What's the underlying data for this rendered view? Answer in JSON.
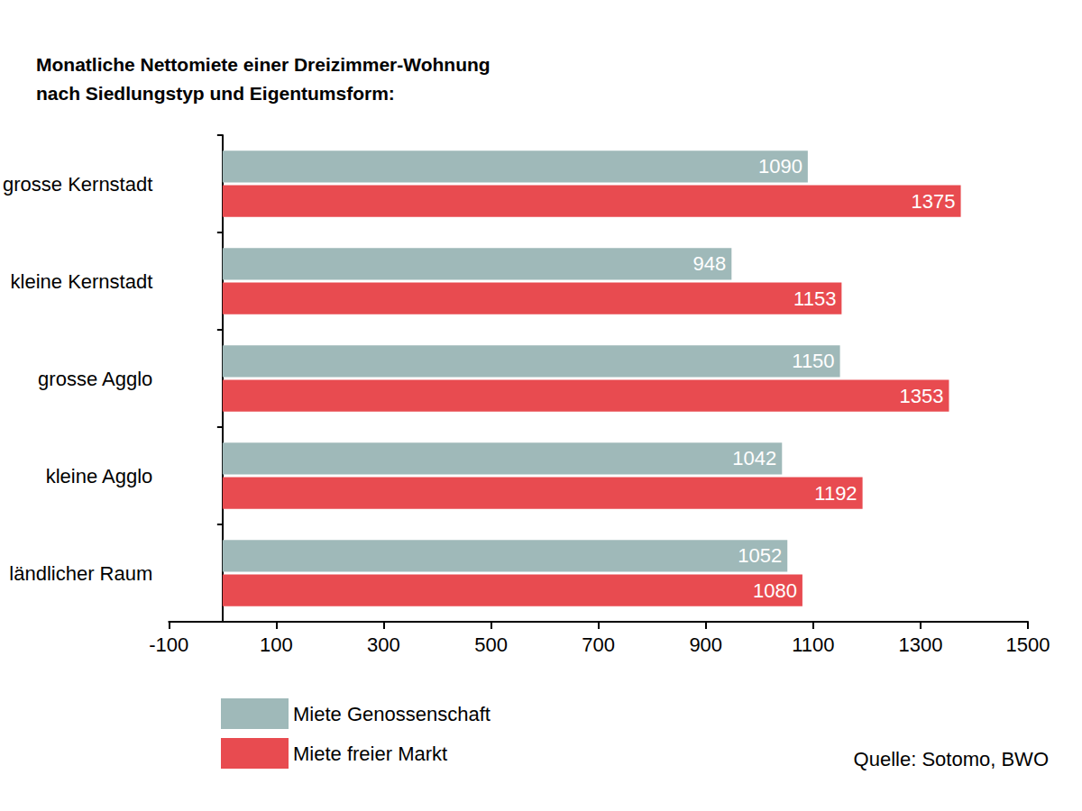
{
  "chart_data": {
    "type": "bar",
    "orientation": "horizontal",
    "title": "Monatliche Nettomiete einer Dreizimmer-Wohnung\nnach Siedlungstyp und Eigentumsform:",
    "annotation": "Quelle: Sotomo, BWO",
    "categories": [
      "grosse Kernstadt",
      "kleine Kernstadt",
      "grosse Agglo",
      "kleine Agglo",
      "ländlicher Raum"
    ],
    "series": [
      {
        "name": "Miete Genossenschaft",
        "color": "#9fb9b9",
        "values": [
          1090,
          948,
          1150,
          1042,
          1052
        ]
      },
      {
        "name": "Miete freier Markt",
        "color": "#e84b50",
        "values": [
          1375,
          1153,
          1353,
          1192,
          1080
        ]
      }
    ],
    "xlim": [
      -100,
      1500
    ],
    "xticks": [
      -100,
      100,
      300,
      500,
      700,
      900,
      1100,
      1300,
      1500
    ],
    "grid": false,
    "legend": "bottom-left",
    "data_labels": true
  }
}
